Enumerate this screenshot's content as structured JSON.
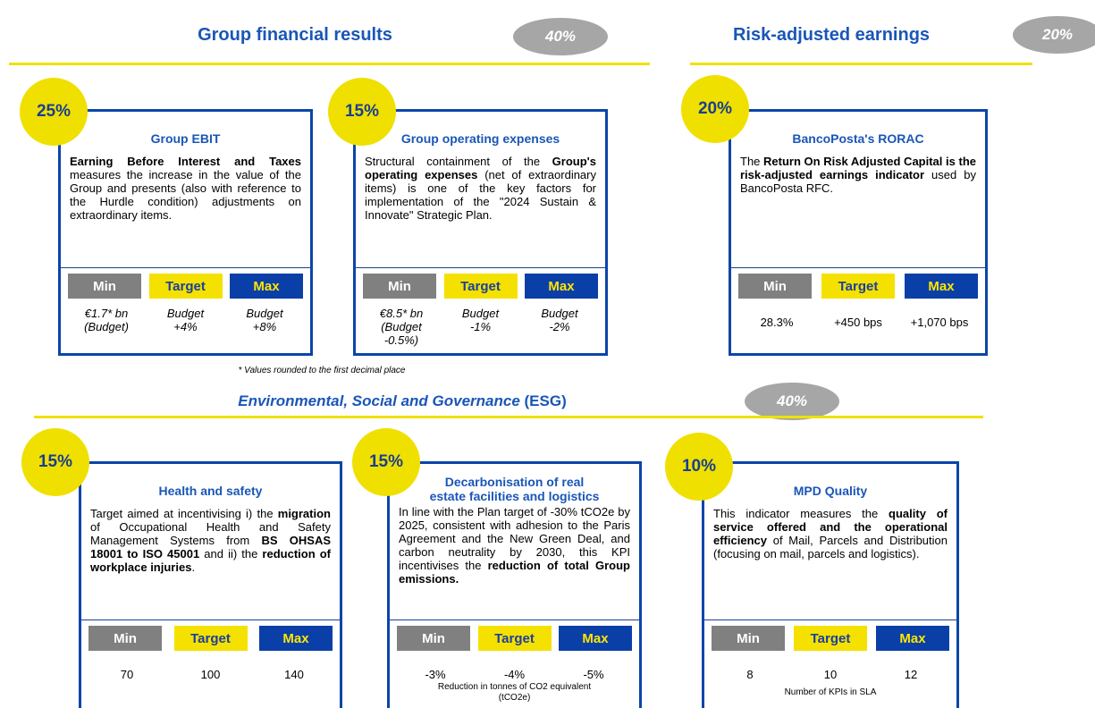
{
  "header": {
    "group": {
      "title": "Group financial results",
      "weight": "40%"
    },
    "risk": {
      "title": "Risk-adjusted earnings",
      "weight": "20%"
    },
    "esg": {
      "title": [
        {
          "text": "Environmental, Social and Governance",
          "italic": true
        },
        {
          "text": " (ESG)",
          "italic": false
        }
      ],
      "weight": "40%"
    }
  },
  "footnote": "* Values rounded to the first decimal place",
  "cards": [
    {
      "weight": "25%",
      "title": "Group EBIT",
      "italic_values": true,
      "description": [
        {
          "text": "Earning Before Interest and Taxes",
          "bold": true
        },
        {
          "text": " measures the increase in the value of the Group and presents (also with reference to the Hurdle condition) adjustments on extraordinary items.",
          "bold": false
        }
      ],
      "labels": [
        "Min",
        "Target",
        "Max"
      ],
      "values": [
        [
          "€1.7* bn",
          "(Budget)"
        ],
        [
          "Budget",
          "+4%"
        ],
        [
          "Budget",
          "+8%"
        ]
      ]
    },
    {
      "weight": "15%",
      "title": "Group operating expenses",
      "italic_values": true,
      "description": [
        {
          "text": "Structural containment of the ",
          "bold": false
        },
        {
          "text": "Group's operating expenses",
          "bold": true
        },
        {
          "text": " (net of extraordinary items) is one of the key factors for implementation of the \"2024 Sustain & Innovate\" Strategic Plan.",
          "bold": false
        }
      ],
      "labels": [
        "Min",
        "Target",
        "Max"
      ],
      "values": [
        [
          "€8.5* bn",
          "(Budget",
          "-0.5%)"
        ],
        [
          "Budget",
          "-1%"
        ],
        [
          "Budget",
          "-2%"
        ]
      ]
    },
    {
      "weight": "20%",
      "title": "BancoPosta's RORAC",
      "italic_values": false,
      "description": [
        {
          "text": "The ",
          "bold": false
        },
        {
          "text": "Return On Risk Adjusted Capital is the risk-adjusted earnings indicator",
          "bold": true
        },
        {
          "text": " used by BancoPosta RFC.",
          "bold": false
        }
      ],
      "labels": [
        "Min",
        "Target",
        "Max"
      ],
      "values": [
        [
          "28.3%"
        ],
        [
          "+450 bps"
        ],
        [
          "+1,070 bps"
        ]
      ]
    },
    {
      "weight": "15%",
      "title": "Health and safety",
      "italic_values": false,
      "description": [
        {
          "text": "Target aimed at incentivising i) the ",
          "bold": false
        },
        {
          "text": "migration",
          "bold": true
        },
        {
          "text": " of Occupational Health and Safety Management Systems from ",
          "bold": false
        },
        {
          "text": "BS OHSAS 18001 to ISO 45001",
          "bold": true
        },
        {
          "text": " and ii) the ",
          "bold": false
        },
        {
          "text": "reduction of workplace injuries",
          "bold": true
        },
        {
          "text": ".",
          "bold": false
        }
      ],
      "labels": [
        "Min",
        "Target",
        "Max"
      ],
      "values": [
        [
          "70"
        ],
        [
          "100"
        ],
        [
          "140"
        ]
      ]
    },
    {
      "weight": "15%",
      "title": "Decarbonisation of real estate facilities and logistics",
      "italic_values": false,
      "description": [
        {
          "text": "In line with the Plan target of -30% tCO2e by 2025, consistent with adhesion to the Paris Agreement and the New Green Deal, and carbon neutrality by 2030, this KPI incentivises the ",
          "bold": false
        },
        {
          "text": "reduction of total Group emissions.",
          "bold": true
        }
      ],
      "labels": [
        "Min",
        "Target",
        "Max"
      ],
      "values": [
        [
          "-3%"
        ],
        [
          "-4%"
        ],
        [
          "-5%"
        ]
      ],
      "note": "Reduction in tonnes of CO2 equivalent (tCO2e)"
    },
    {
      "weight": "10%",
      "title": "MPD Quality",
      "italic_values": false,
      "description": [
        {
          "text": "This indicator measures the ",
          "bold": false
        },
        {
          "text": "quality of service offered and the operational efficiency",
          "bold": true
        },
        {
          "text": " of Mail, Parcels and Distribution (focusing on mail, parcels and logistics).",
          "bold": false
        }
      ],
      "labels": [
        "Min",
        "Target",
        "Max"
      ],
      "values": [
        [
          "8"
        ],
        [
          "10"
        ],
        [
          "12"
        ]
      ],
      "note": "Number of KPIs in SLA"
    }
  ]
}
